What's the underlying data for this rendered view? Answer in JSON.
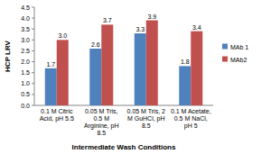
{
  "chart_data": {
    "type": "bar",
    "x_label": "Intermediate Wash Conditions",
    "y_label": "HCP LRV",
    "categories": [
      "0.1 M Citric Acid, pH 5.5",
      "0.05 M Tris, 0.5 M Arginine, pH 8.5",
      "0.05 M Tris, 2 M GuHCl, pH 8.5",
      "0.1 M Acetate, 0.5 M NaCl, pH 5"
    ],
    "series": [
      {
        "name": "MAb 1",
        "color": "#4f81bd",
        "values": [
          1.7,
          2.6,
          3.3,
          1.8
        ],
        "value_labels": [
          "1.7",
          "2.6",
          "3.3",
          "1.8"
        ]
      },
      {
        "name": "MAb2",
        "color": "#c0504d",
        "values": [
          3.0,
          3.7,
          3.9,
          3.4
        ],
        "value_labels": [
          "3.0",
          "3.7",
          "3.9",
          "3.4"
        ]
      }
    ],
    "ylim": [
      0,
      4.5
    ],
    "yticks": [
      {
        "value": 0,
        "label": "0.0"
      },
      0.5,
      {
        "value": 1,
        "label": "1.0"
      },
      1.5,
      {
        "value": 2,
        "label": "2.0"
      },
      2.5,
      {
        "value": 3,
        "label": "3.0"
      },
      3.5,
      {
        "value": 4,
        "label": "4.0"
      },
      4.5
    ],
    "grid": false,
    "legend": "right",
    "data_labels": true
  }
}
